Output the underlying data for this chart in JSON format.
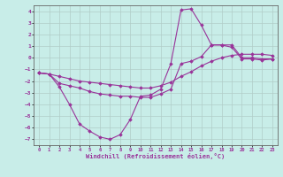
{
  "xlabel": "Windchill (Refroidissement éolien,°C)",
  "background_color": "#c8ede8",
  "grid_color": "#b0ccc8",
  "line_color": "#993399",
  "xlim": [
    -0.5,
    23.5
  ],
  "ylim": [
    -7.5,
    4.5
  ],
  "yticks": [
    -7,
    -6,
    -5,
    -4,
    -3,
    -2,
    -1,
    0,
    1,
    2,
    3,
    4
  ],
  "xticks": [
    0,
    1,
    2,
    3,
    4,
    5,
    6,
    7,
    8,
    9,
    10,
    11,
    12,
    13,
    14,
    15,
    16,
    17,
    18,
    19,
    20,
    21,
    22,
    23
  ],
  "curve1_x": [
    0,
    1,
    2,
    3,
    4,
    5,
    6,
    7,
    8,
    9,
    10,
    11,
    12,
    13,
    14,
    15,
    16,
    17,
    18,
    19,
    20,
    21,
    22,
    23
  ],
  "curve1_y": [
    -1.3,
    -1.4,
    -2.5,
    -4.0,
    -5.7,
    -6.3,
    -6.8,
    -7.0,
    -6.6,
    -5.3,
    -3.3,
    -3.2,
    -2.7,
    -0.5,
    4.1,
    4.2,
    2.8,
    1.1,
    1.1,
    0.9,
    -0.1,
    -0.1,
    -0.2,
    -0.1
  ],
  "curve2_x": [
    0,
    1,
    2,
    3,
    4,
    5,
    6,
    7,
    8,
    9,
    10,
    11,
    12,
    13,
    14,
    15,
    16,
    17,
    18,
    19,
    20,
    21,
    22,
    23
  ],
  "curve2_y": [
    -1.3,
    -1.4,
    -2.2,
    -2.4,
    -2.6,
    -2.9,
    -3.1,
    -3.2,
    -3.3,
    -3.3,
    -3.4,
    -3.4,
    -3.1,
    -2.7,
    -0.5,
    -0.3,
    0.1,
    1.1,
    1.1,
    1.1,
    0.0,
    0.0,
    -0.1,
    -0.1
  ],
  "curve3_x": [
    0,
    1,
    2,
    3,
    4,
    5,
    6,
    7,
    8,
    9,
    10,
    11,
    12,
    13,
    14,
    15,
    16,
    17,
    18,
    19,
    20,
    21,
    22,
    23
  ],
  "curve3_y": [
    -1.3,
    -1.4,
    -1.6,
    -1.8,
    -2.0,
    -2.1,
    -2.2,
    -2.3,
    -2.4,
    -2.5,
    -2.6,
    -2.6,
    -2.4,
    -2.1,
    -1.6,
    -1.2,
    -0.7,
    -0.3,
    0.0,
    0.2,
    0.3,
    0.3,
    0.3,
    0.2
  ]
}
